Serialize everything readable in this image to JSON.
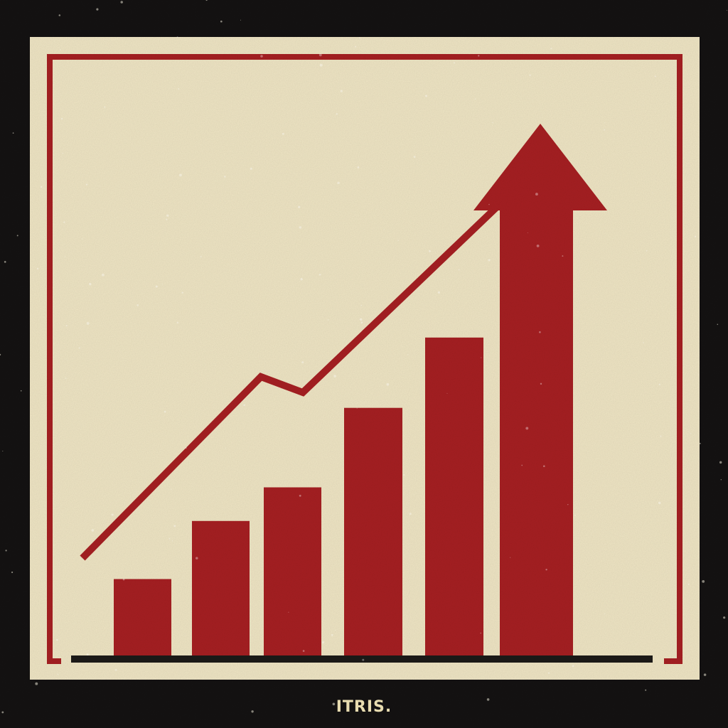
{
  "brand": {
    "text": "ITRIS."
  },
  "illustration": {
    "subject": "bar-chart-with-rising-trend-arrow",
    "bars_relative_heights": [
      0.25,
      0.44,
      0.55,
      0.81,
      1.04,
      1.46
    ],
    "trend_line": [
      0.3,
      0.43,
      0.69,
      0.63,
      0.97,
      1.35
    ]
  },
  "colors": {
    "background": "#141212",
    "panel": "#efe5c4",
    "accent_red": "#a61f22",
    "baseline": "#1c1a18",
    "brand_text": "#e8dcb0"
  }
}
